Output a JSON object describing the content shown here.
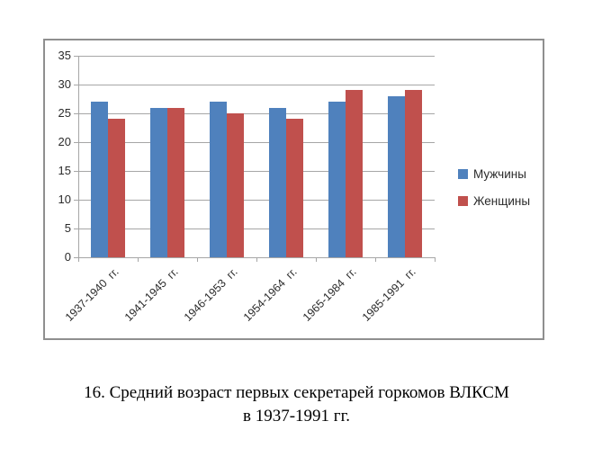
{
  "caption": {
    "line1": "16. Средний возраст первых секретарей горкомов ВЛКСМ",
    "line2": "в 1937-1991 гг."
  },
  "chart_data": {
    "type": "bar",
    "title": "",
    "xlabel": "",
    "ylabel": "",
    "categories": [
      "1937-1940  гг.",
      "1941-1945  гг.",
      "1946-1953  гг.",
      "1954-1964  гг.",
      "1965-1984  гг.",
      "1985-1991  гг."
    ],
    "series": [
      {
        "name": "Мужчины",
        "color": "#4F81BD",
        "values": [
          27,
          26,
          27,
          26,
          27,
          28
        ]
      },
      {
        "name": "Женщины",
        "color": "#C0504D",
        "values": [
          24,
          26,
          25,
          24,
          29,
          29
        ]
      }
    ],
    "ylim": [
      0,
      35
    ],
    "ytick_step": 5,
    "grid": true,
    "legend_position": "right"
  },
  "colors": {
    "background": "#FFFFFF",
    "chart_border": "#8F8F8F",
    "gridline": "#A6A6A6",
    "axis_text": "#2B2B2B"
  }
}
